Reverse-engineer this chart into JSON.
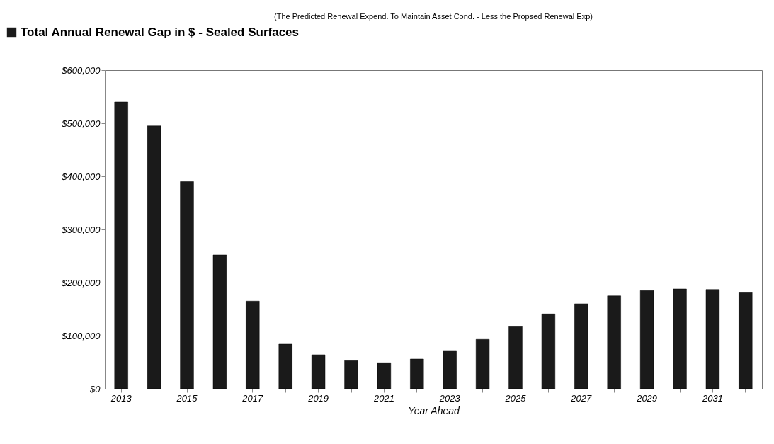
{
  "chart_data": {
    "type": "bar",
    "subtitle": "(The Predicted Renewal Expend. To Maintain Asset Cond. -  Less the Propsed Renewal Exp)",
    "xlabel": "Year Ahead",
    "categories": [
      "2013",
      null,
      "2015",
      null,
      "2017",
      null,
      "2019",
      null,
      "2021",
      null,
      "2023",
      null,
      "2025",
      null,
      "2027",
      null,
      "2029",
      null,
      "2031",
      null
    ],
    "series": [
      {
        "name": "Total Annual Renewal Gap in $ -  Sealed Surfaces",
        "color": "#1a1a1a",
        "values": [
          540000,
          495000,
          390000,
          252000,
          165000,
          84000,
          64000,
          53000,
          49000,
          56000,
          72000,
          93000,
          117000,
          141000,
          160000,
          175000,
          185000,
          188000,
          187000,
          181000
        ]
      }
    ],
    "ylim": [
      0,
      600000
    ],
    "yticks": [
      {
        "value": 0,
        "label": "$0"
      },
      {
        "value": 100000,
        "label": "$100,000"
      },
      {
        "value": 200000,
        "label": "$200,000"
      },
      {
        "value": 300000,
        "label": "$300,000"
      },
      {
        "value": 400000,
        "label": "$400,000"
      },
      {
        "value": 500000,
        "label": "$500,000"
      },
      {
        "value": 600000,
        "label": "$600,000"
      }
    ],
    "legend": "top left",
    "grid": false
  }
}
